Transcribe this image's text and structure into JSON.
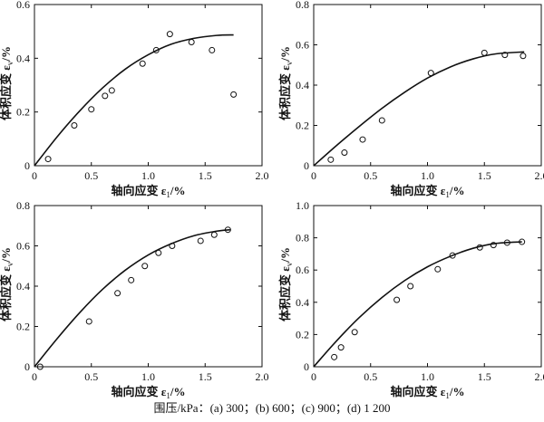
{
  "caption": "围压/kPa：(a) 300；(b) 600；(c) 900；(d) 1 200",
  "chart_data": [
    {
      "type": "scatter",
      "xlabel": "轴向应变 ε1/%",
      "ylabel": "体积应变 εv/%",
      "xlim": [
        0,
        2.0
      ],
      "ylim": [
        0,
        0.6
      ],
      "xticks": [
        "0",
        "0.5",
        "1.0",
        "1.5",
        "2.0"
      ],
      "yticks": [
        "0",
        "0.2",
        "0.4",
        "0.6"
      ],
      "series": [
        {
          "kind": "points",
          "x": [
            0.12,
            0.35,
            0.5,
            0.62,
            0.68,
            0.95,
            1.07,
            1.19,
            1.38,
            1.56,
            1.75
          ],
          "y": [
            0.025,
            0.15,
            0.21,
            0.26,
            0.28,
            0.38,
            0.43,
            0.49,
            0.46,
            0.43,
            0.265
          ]
        },
        {
          "kind": "curve",
          "x": [
            0,
            0.2,
            0.4,
            0.6,
            0.8,
            1.0,
            1.2,
            1.4,
            1.6,
            1.75
          ],
          "y": [
            0,
            0.108,
            0.205,
            0.29,
            0.36,
            0.413,
            0.452,
            0.474,
            0.485,
            0.487
          ]
        }
      ]
    },
    {
      "type": "scatter",
      "xlabel": "轴向应变 ε1/%",
      "ylabel": "体积应变 εv/%",
      "xlim": [
        0,
        2.0
      ],
      "ylim": [
        0,
        0.8
      ],
      "xticks": [
        "0",
        "0.5",
        "1.0",
        "1.5",
        "2.0"
      ],
      "yticks": [
        "0",
        "0.2",
        "0.4",
        "0.6",
        "0.8"
      ],
      "series": [
        {
          "kind": "points",
          "x": [
            0.15,
            0.27,
            0.43,
            0.6,
            1.03,
            1.5,
            1.68,
            1.84
          ],
          "y": [
            0.03,
            0.065,
            0.13,
            0.225,
            0.46,
            0.56,
            0.55,
            0.545
          ]
        },
        {
          "kind": "curve",
          "x": [
            0,
            0.2,
            0.4,
            0.6,
            0.8,
            1.0,
            1.2,
            1.4,
            1.6,
            1.85
          ],
          "y": [
            0,
            0.1,
            0.195,
            0.285,
            0.365,
            0.435,
            0.49,
            0.53,
            0.555,
            0.565
          ]
        }
      ]
    },
    {
      "type": "scatter",
      "xlabel": "轴向应变 ε1/%",
      "ylabel": "体积应变 εv/%",
      "xlim": [
        0,
        2.0
      ],
      "ylim": [
        0,
        0.8
      ],
      "xticks": [
        "0",
        "0.5",
        "1.0",
        "1.5",
        "2.0"
      ],
      "yticks": [
        "0",
        "0.2",
        "0.4",
        "0.6",
        "0.8"
      ],
      "series": [
        {
          "kind": "points",
          "x": [
            0.05,
            0.48,
            0.73,
            0.85,
            0.97,
            1.09,
            1.21,
            1.46,
            1.58,
            1.7
          ],
          "y": [
            0.0,
            0.225,
            0.365,
            0.43,
            0.5,
            0.565,
            0.6,
            0.625,
            0.655,
            0.68
          ]
        },
        {
          "kind": "curve",
          "x": [
            0,
            0.2,
            0.4,
            0.6,
            0.8,
            1.0,
            1.2,
            1.4,
            1.6,
            1.72
          ],
          "y": [
            0,
            0.14,
            0.27,
            0.385,
            0.48,
            0.555,
            0.61,
            0.65,
            0.673,
            0.68
          ]
        }
      ]
    },
    {
      "type": "scatter",
      "xlabel": "轴向应变 ε1/%",
      "ylabel": "体积应变 εv/%",
      "xlim": [
        0,
        2.0
      ],
      "ylim": [
        0,
        1.0
      ],
      "xticks": [
        "0",
        "0.5",
        "1.0",
        "1.5",
        "2.0"
      ],
      "yticks": [
        "0",
        "0.2",
        "0.4",
        "0.6",
        "0.8",
        "1.0"
      ],
      "series": [
        {
          "kind": "points",
          "x": [
            0.18,
            0.24,
            0.36,
            0.73,
            0.85,
            1.09,
            1.22,
            1.46,
            1.58,
            1.7,
            1.83
          ],
          "y": [
            0.06,
            0.12,
            0.215,
            0.415,
            0.5,
            0.605,
            0.69,
            0.74,
            0.755,
            0.77,
            0.775
          ]
        },
        {
          "kind": "curve",
          "x": [
            0,
            0.2,
            0.4,
            0.6,
            0.8,
            1.0,
            1.2,
            1.4,
            1.6,
            1.83
          ],
          "y": [
            0,
            0.16,
            0.305,
            0.43,
            0.535,
            0.62,
            0.685,
            0.735,
            0.765,
            0.775
          ]
        }
      ]
    }
  ]
}
